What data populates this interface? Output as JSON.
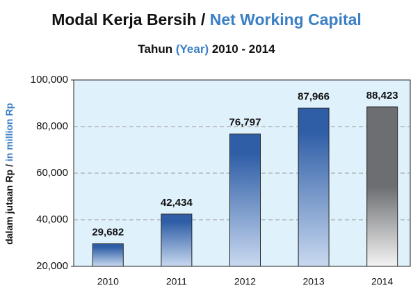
{
  "chart_data": {
    "type": "bar",
    "title": [
      "Modal Kerja Bersih /",
      "Net Working Capital"
    ],
    "subtitle": [
      "Tahun",
      "(Year)",
      "2010 - 2014"
    ],
    "y_label": [
      "dalam jutaan Rp /",
      "in million Rp"
    ],
    "categories": [
      "2010",
      "2011",
      "2012",
      "2013",
      "2014"
    ],
    "values": [
      29682,
      42434,
      76797,
      87966,
      88423
    ],
    "value_labels": [
      "29,682",
      "42,434",
      "76,797",
      "87,966",
      "88,423"
    ],
    "colors": [
      "#2f5ea6",
      "#2f5ea6",
      "#2f5ea6",
      "#2f5ea6",
      "#6d6e71"
    ],
    "ylim": [
      20000,
      100000
    ],
    "yticks": [
      {
        "value": 20000,
        "label": "20,000"
      },
      {
        "value": 40000,
        "label": "40,000"
      },
      {
        "value": 60000,
        "label": "60,000"
      },
      {
        "value": 80000,
        "label": "80,000"
      },
      {
        "value": 100000,
        "label": "100,000"
      }
    ],
    "grid": true
  }
}
